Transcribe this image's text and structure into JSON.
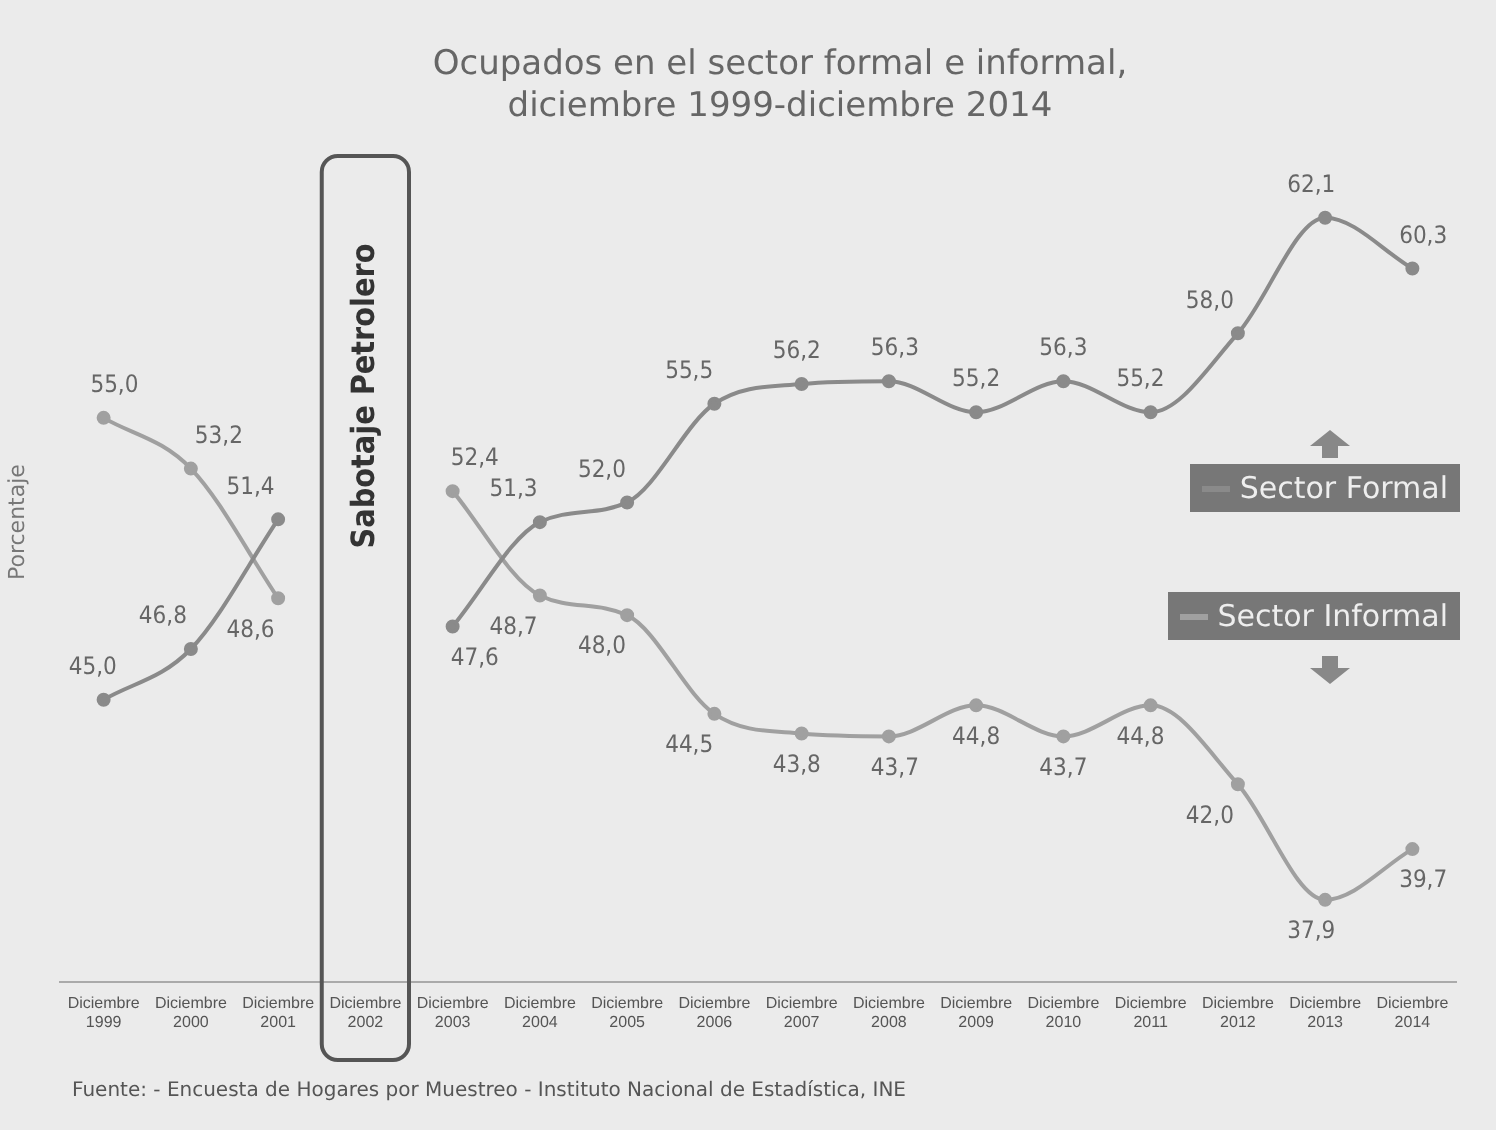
{
  "chart_data": {
    "type": "line",
    "title": "Ocupados en el sector formal e informal, diciembre 1999-diciembre 2014",
    "ylabel": "Porcentaje",
    "categories": [
      "Diciembre 1999",
      "Diciembre 2000",
      "Diciembre 2001",
      "Diciembre 2002",
      "Diciembre 2003",
      "Diciembre 2004",
      "Diciembre 2005",
      "Diciembre 2006",
      "Diciembre 2007",
      "Diciembre 2008",
      "Diciembre 2009",
      "Diciembre 2010",
      "Diciembre 2011",
      "Diciembre 2012",
      "Diciembre 2013",
      "Diciembre 2014"
    ],
    "series": [
      {
        "name": "Sector Formal",
        "color": "#8a8a8a",
        "values": [
          45.0,
          46.8,
          51.4,
          null,
          47.6,
          51.3,
          52.0,
          55.5,
          56.2,
          56.3,
          55.2,
          56.3,
          55.2,
          58.0,
          62.1,
          60.3
        ],
        "value_labels": [
          "45,0",
          "46,8",
          "51,4",
          null,
          "47,6",
          "51,3",
          "52,0",
          "55,5",
          "56,2",
          "56,3",
          "55,2",
          "56,3",
          "55,2",
          "58,0",
          "62,1",
          "60,3"
        ]
      },
      {
        "name": "Sector Informal",
        "color": "#a0a0a0",
        "values": [
          55.0,
          53.2,
          48.6,
          null,
          52.4,
          48.7,
          48.0,
          44.5,
          43.8,
          43.7,
          44.8,
          43.7,
          44.8,
          42.0,
          37.9,
          39.7
        ],
        "value_labels": [
          "55,0",
          "53,2",
          "48,6",
          null,
          "52,4",
          "48,7",
          "48,0",
          "44,5",
          "43,8",
          "43,7",
          "44,8",
          "43,7",
          "44,8",
          "42,0",
          "37,9",
          "39,7"
        ]
      }
    ],
    "marker": "circle",
    "legend": "right",
    "grid": false,
    "tick_labels": "x",
    "annotations": [
      "Sabotaje Petrolero",
      "Fuente: - Encuesta de Hogares por Muestreo - Instituto Nacional de Estadística, INE"
    ]
  }
}
